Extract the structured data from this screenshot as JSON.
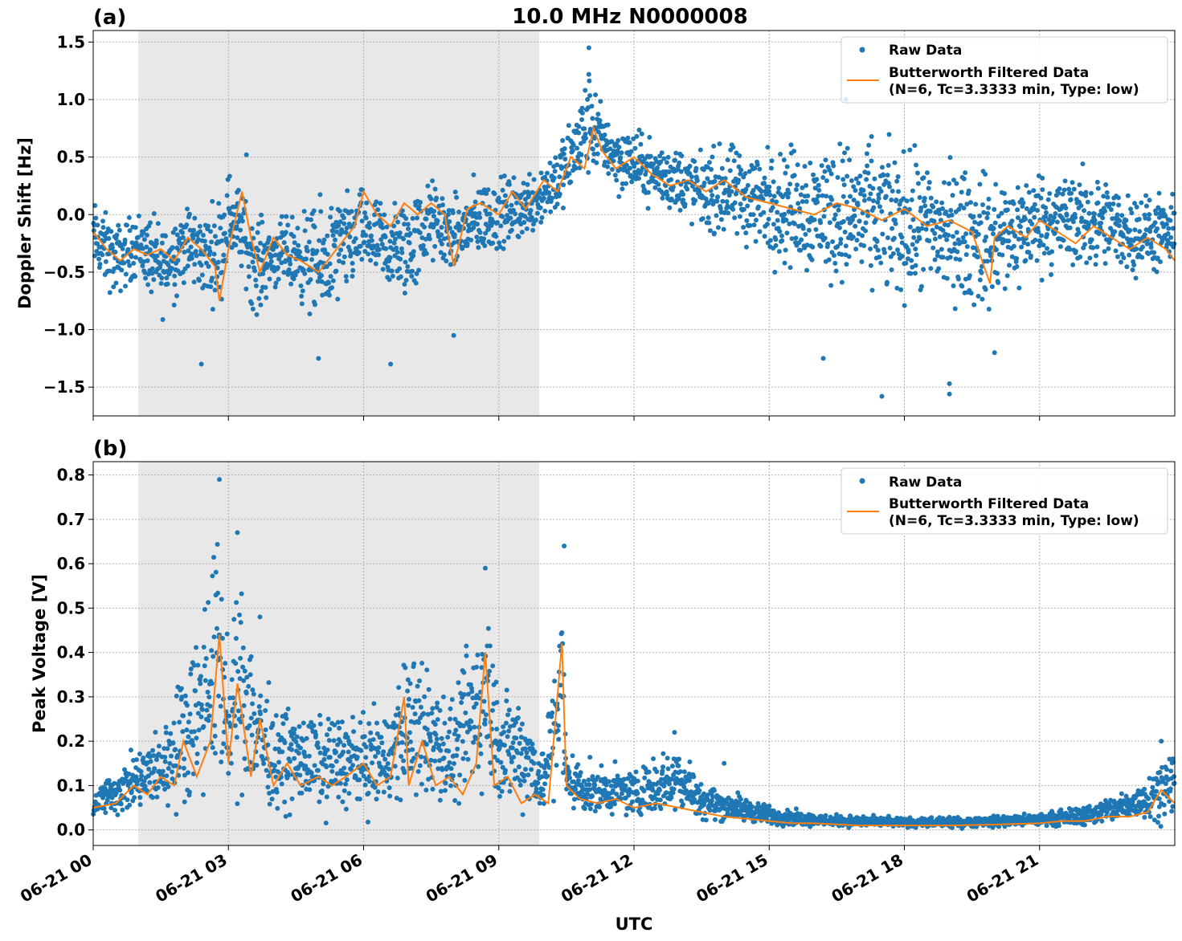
{
  "figure": {
    "title": "10.0 MHz N0000008",
    "xlabel": "UTC",
    "colors": {
      "raw": "#1f77b4",
      "filtered": "#ff7f0e",
      "shade": "#e8e8e8",
      "grid": "#b0b0b0"
    }
  },
  "chart_data": [
    {
      "type": "scatter",
      "panel_label": "(a)",
      "ylabel": "Doppler Shift [Hz]",
      "xlim": [
        0,
        24
      ],
      "ylim": [
        -1.75,
        1.6
      ],
      "yticks": [
        1.5,
        1.0,
        0.5,
        0.0,
        -0.5,
        -1.0,
        -1.5
      ],
      "ytick_labels": [
        "1.5",
        "1.0",
        "0.5",
        "0.0",
        "−0.5",
        "−1.0",
        "−1.5"
      ],
      "shaded_x": [
        1.0,
        9.9
      ],
      "grid": true,
      "legend": {
        "placement": "top-right",
        "entries": [
          "Raw Data",
          "Butterworth Filtered Data",
          "(N=6, Tc=3.3333 min, Type: low)"
        ]
      },
      "series": [
        {
          "name": "Raw Data",
          "kind": "scatter",
          "color": "#1f77b4",
          "band_x": [
            0,
            0.5,
            1,
            1.5,
            2,
            2.5,
            2.8,
            3,
            3.3,
            3.6,
            4,
            4.5,
            5,
            5.5,
            6,
            6.5,
            7,
            7.5,
            8,
            8.5,
            9,
            9.5,
            10,
            10.5,
            11,
            11.3,
            11.6,
            12,
            12.5,
            13,
            13.5,
            14,
            15,
            16,
            17,
            18,
            19,
            20,
            21,
            22,
            23,
            24
          ],
          "band_low": [
            -0.6,
            -0.8,
            -0.6,
            -1.0,
            -0.7,
            -0.8,
            -0.9,
            -0.5,
            -0.6,
            -1.0,
            -0.7,
            -0.8,
            -1.1,
            -0.9,
            -0.6,
            -0.8,
            -0.9,
            -0.5,
            -0.6,
            -0.5,
            -0.4,
            -0.3,
            -0.2,
            0.0,
            0.2,
            0.3,
            0.1,
            0.1,
            0.0,
            -0.1,
            -0.2,
            -0.3,
            -0.5,
            -0.7,
            -0.8,
            -0.9,
            -0.9,
            -1.0,
            -0.6,
            -0.6,
            -0.6,
            -0.6
          ],
          "band_high": [
            0.2,
            0.0,
            0.1,
            0.05,
            0.2,
            0.1,
            0.3,
            0.5,
            0.3,
            0.1,
            0.0,
            0.1,
            0.2,
            0.3,
            0.3,
            0.2,
            0.3,
            0.4,
            0.2,
            0.4,
            0.4,
            0.4,
            0.6,
            0.8,
            1.4,
            1.0,
            0.9,
            0.8,
            0.7,
            0.7,
            0.6,
            0.7,
            0.7,
            0.8,
            0.8,
            0.7,
            0.6,
            0.5,
            0.5,
            0.5,
            0.3,
            0.2
          ],
          "outliers": [
            [
              2.4,
              -1.3
            ],
            [
              5.0,
              -1.25
            ],
            [
              6.6,
              -1.3
            ],
            [
              8.0,
              -1.05
            ],
            [
              11.0,
              1.45
            ],
            [
              16.2,
              -1.25
            ],
            [
              17.5,
              -1.58
            ],
            [
              19.0,
              -1.56
            ],
            [
              19.0,
              -1.47
            ],
            [
              20.0,
              -1.2
            ],
            [
              16.7,
              1.0
            ],
            [
              3.4,
              0.52
            ]
          ]
        },
        {
          "name": "Butterworth Filtered Data",
          "kind": "line",
          "color": "#ff7f0e",
          "x": [
            0,
            0.3,
            0.6,
            0.9,
            1.2,
            1.5,
            1.8,
            2.1,
            2.4,
            2.7,
            2.8,
            3.0,
            3.3,
            3.5,
            3.7,
            4.0,
            4.3,
            4.6,
            5.0,
            5.4,
            5.8,
            6.0,
            6.3,
            6.6,
            6.9,
            7.2,
            7.5,
            7.8,
            8.0,
            8.3,
            8.6,
            9.0,
            9.3,
            9.6,
            10.0,
            10.3,
            10.6,
            10.9,
            11.1,
            11.3,
            11.6,
            12.0,
            12.4,
            12.8,
            13.2,
            13.6,
            14.0,
            14.5,
            15.0,
            15.5,
            16.0,
            16.5,
            17.0,
            17.5,
            18.0,
            18.5,
            19.0,
            19.5,
            19.9,
            20.0,
            20.3,
            20.7,
            21.0,
            21.4,
            21.8,
            22.2,
            22.6,
            23.0,
            23.4,
            23.8,
            24.0
          ],
          "y": [
            -0.15,
            -0.3,
            -0.4,
            -0.3,
            -0.35,
            -0.3,
            -0.4,
            -0.2,
            -0.3,
            -0.45,
            -0.75,
            -0.3,
            0.2,
            -0.2,
            -0.5,
            -0.2,
            -0.35,
            -0.4,
            -0.5,
            -0.3,
            -0.1,
            0.2,
            0.0,
            -0.1,
            0.1,
            0.0,
            0.1,
            0.0,
            -0.45,
            0.05,
            0.1,
            0.0,
            0.2,
            0.05,
            0.3,
            0.2,
            0.5,
            0.4,
            0.75,
            0.55,
            0.4,
            0.5,
            0.35,
            0.25,
            0.3,
            0.2,
            0.3,
            0.15,
            0.1,
            0.05,
            0.0,
            0.1,
            0.05,
            -0.05,
            0.05,
            -0.1,
            -0.05,
            -0.15,
            -0.6,
            -0.2,
            -0.1,
            -0.2,
            -0.05,
            -0.15,
            -0.25,
            -0.1,
            -0.2,
            -0.3,
            -0.2,
            -0.3,
            -0.4
          ]
        }
      ]
    },
    {
      "type": "scatter",
      "panel_label": "(b)",
      "ylabel": "Peak Voltage [V]",
      "xlim": [
        0,
        24
      ],
      "ylim": [
        -0.035,
        0.83
      ],
      "yticks": [
        0.0,
        0.1,
        0.2,
        0.3,
        0.4,
        0.5,
        0.6,
        0.7,
        0.8
      ],
      "ytick_labels": [
        "0.0",
        "0.1",
        "0.2",
        "0.3",
        "0.4",
        "0.5",
        "0.6",
        "0.7",
        "0.8"
      ],
      "xticks": [
        0,
        3,
        6,
        9,
        12,
        15,
        18,
        21
      ],
      "xtick_labels": [
        "06-21 00",
        "06-21 03",
        "06-21 06",
        "06-21 09",
        "06-21 12",
        "06-21 15",
        "06-21 18",
        "06-21 21"
      ],
      "shaded_x": [
        1.0,
        9.9
      ],
      "grid": true,
      "legend": {
        "placement": "top-right",
        "entries": [
          "Raw Data",
          "Butterworth Filtered Data",
          "(N=6, Tc=3.3333 min, Type: low)"
        ]
      },
      "series": [
        {
          "name": "Raw Data",
          "kind": "scatter",
          "color": "#1f77b4",
          "band_x": [
            0,
            0.5,
            1,
            1.5,
            2,
            2.5,
            2.8,
            3,
            3.3,
            3.6,
            4,
            4.5,
            5,
            5.5,
            6,
            6.5,
            7,
            7.5,
            8,
            8.5,
            8.8,
            9,
            9.5,
            10,
            10.4,
            10.5,
            11,
            11.5,
            12,
            12.5,
            13,
            13.5,
            14,
            14.5,
            15,
            16,
            17,
            18,
            19,
            20,
            21,
            22,
            22.5,
            23,
            23.5,
            24
          ],
          "band_low": [
            0.02,
            0.02,
            0.02,
            0.02,
            0.03,
            0.03,
            0.03,
            0.03,
            0.03,
            0.02,
            0.02,
            0.02,
            0.02,
            0.02,
            0.02,
            0.02,
            0.02,
            0.02,
            0.02,
            0.02,
            0.02,
            0.02,
            0.02,
            0.02,
            0.02,
            0.03,
            0.02,
            0.02,
            0.02,
            0.02,
            0.02,
            0.015,
            0.01,
            0.01,
            0.005,
            0.005,
            0.003,
            0.003,
            0.003,
            0.003,
            0.005,
            0.005,
            0.01,
            0.01,
            0.01,
            0.01
          ],
          "band_high": [
            0.1,
            0.15,
            0.2,
            0.25,
            0.4,
            0.6,
            0.79,
            0.4,
            0.66,
            0.45,
            0.3,
            0.3,
            0.28,
            0.3,
            0.28,
            0.3,
            0.45,
            0.4,
            0.3,
            0.55,
            0.59,
            0.35,
            0.35,
            0.2,
            0.64,
            0.2,
            0.16,
            0.15,
            0.15,
            0.18,
            0.22,
            0.12,
            0.1,
            0.08,
            0.06,
            0.04,
            0.035,
            0.03,
            0.03,
            0.035,
            0.04,
            0.06,
            0.08,
            0.1,
            0.15,
            0.21
          ],
          "outliers": [
            [
              2.8,
              0.79
            ],
            [
              3.2,
              0.67
            ],
            [
              3.7,
              0.48
            ],
            [
              10.45,
              0.64
            ],
            [
              8.7,
              0.59
            ],
            [
              12.9,
              0.22
            ],
            [
              14.0,
              0.15
            ],
            [
              23.7,
              0.2
            ]
          ]
        },
        {
          "name": "Butterworth Filtered Data",
          "kind": "line",
          "color": "#ff7f0e",
          "x": [
            0,
            0.5,
            0.9,
            1.2,
            1.5,
            1.8,
            2.0,
            2.3,
            2.6,
            2.8,
            3.0,
            3.2,
            3.5,
            3.7,
            4.0,
            4.3,
            4.6,
            5.0,
            5.3,
            5.6,
            6.0,
            6.3,
            6.6,
            6.9,
            7.0,
            7.3,
            7.6,
            7.9,
            8.2,
            8.5,
            8.7,
            8.9,
            9.2,
            9.5,
            9.8,
            10.1,
            10.4,
            10.5,
            10.8,
            11.2,
            11.6,
            12.0,
            12.5,
            13.0,
            13.5,
            14.0,
            14.5,
            15.0,
            15.5,
            16.0,
            17.0,
            18.0,
            19.0,
            20.0,
            21.0,
            21.5,
            22.0,
            22.5,
            23.0,
            23.4,
            23.7,
            24.0
          ],
          "y": [
            0.05,
            0.06,
            0.1,
            0.08,
            0.12,
            0.1,
            0.2,
            0.12,
            0.2,
            0.44,
            0.15,
            0.33,
            0.12,
            0.25,
            0.1,
            0.15,
            0.1,
            0.12,
            0.1,
            0.12,
            0.15,
            0.1,
            0.12,
            0.3,
            0.1,
            0.2,
            0.1,
            0.12,
            0.08,
            0.15,
            0.4,
            0.1,
            0.12,
            0.06,
            0.08,
            0.06,
            0.42,
            0.1,
            0.07,
            0.06,
            0.07,
            0.05,
            0.06,
            0.05,
            0.04,
            0.03,
            0.025,
            0.02,
            0.015,
            0.015,
            0.01,
            0.01,
            0.01,
            0.012,
            0.015,
            0.02,
            0.02,
            0.03,
            0.03,
            0.04,
            0.09,
            0.06
          ]
        }
      ]
    }
  ]
}
